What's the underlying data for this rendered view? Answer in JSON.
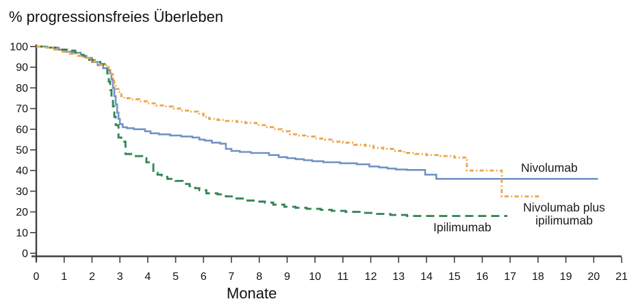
{
  "chart_data": {
    "type": "line",
    "subtype": "kaplan-meier-step",
    "title": "% progressionsfreies Überleben",
    "xlabel": "Monate",
    "ylabel": "% progressionsfreies Überleben",
    "xlim": [
      0,
      21
    ],
    "ylim": [
      0,
      100
    ],
    "x_ticks": [
      0,
      1,
      2,
      3,
      4,
      5,
      6,
      7,
      8,
      9,
      10,
      11,
      12,
      13,
      14,
      15,
      16,
      17,
      18,
      19,
      20,
      21
    ],
    "y_ticks": [
      0,
      10,
      20,
      30,
      40,
      50,
      60,
      70,
      80,
      90,
      100
    ],
    "grid": false,
    "legend_position": "inline-annotations",
    "axis_color": "#3f3f3f",
    "text_color": "#111111",
    "series": [
      {
        "name": "Nivolumab",
        "color": "#7291c7",
        "line_style": "solid",
        "points": [
          [
            0,
            100
          ],
          [
            0.4,
            99.5
          ],
          [
            0.8,
            98.5
          ],
          [
            1.0,
            97.5
          ],
          [
            1.3,
            97
          ],
          [
            1.6,
            95.5
          ],
          [
            1.8,
            94.5
          ],
          [
            2.0,
            92.5
          ],
          [
            2.2,
            91
          ],
          [
            2.4,
            89.5
          ],
          [
            2.55,
            88.5
          ],
          [
            2.65,
            87
          ],
          [
            2.7,
            84
          ],
          [
            2.75,
            80
          ],
          [
            2.8,
            76
          ],
          [
            2.85,
            72
          ],
          [
            2.9,
            68
          ],
          [
            2.95,
            65
          ],
          [
            3.0,
            62.5
          ],
          [
            3.1,
            61
          ],
          [
            3.25,
            60.5
          ],
          [
            3.5,
            60
          ],
          [
            3.9,
            59
          ],
          [
            4.1,
            58
          ],
          [
            4.4,
            57.5
          ],
          [
            4.8,
            57
          ],
          [
            5.2,
            56.5
          ],
          [
            5.6,
            56
          ],
          [
            5.85,
            55
          ],
          [
            6.05,
            54.5
          ],
          [
            6.3,
            53.5
          ],
          [
            6.6,
            53
          ],
          [
            6.8,
            50.5
          ],
          [
            7.0,
            49.5
          ],
          [
            7.3,
            49
          ],
          [
            7.7,
            48.5
          ],
          [
            8.1,
            48.5
          ],
          [
            8.35,
            47.5
          ],
          [
            8.7,
            46.5
          ],
          [
            9.0,
            46
          ],
          [
            9.3,
            45.5
          ],
          [
            9.6,
            45
          ],
          [
            9.9,
            44.5
          ],
          [
            10.3,
            44
          ],
          [
            10.9,
            43.5
          ],
          [
            11.5,
            43
          ],
          [
            11.95,
            42
          ],
          [
            12.3,
            41.5
          ],
          [
            12.6,
            41
          ],
          [
            12.9,
            40.5
          ],
          [
            13.3,
            40.3
          ],
          [
            13.95,
            38
          ],
          [
            14.35,
            36
          ],
          [
            20.15,
            36
          ]
        ]
      },
      {
        "name": "Ipilimumab",
        "color": "#338657",
        "line_style": "long-dash",
        "points": [
          [
            0,
            100
          ],
          [
            0.4,
            99.5
          ],
          [
            0.8,
            98.5
          ],
          [
            1.1,
            98
          ],
          [
            1.4,
            97
          ],
          [
            1.55,
            96
          ],
          [
            1.7,
            95
          ],
          [
            1.9,
            93.5
          ],
          [
            2.1,
            92.5
          ],
          [
            2.3,
            91.5
          ],
          [
            2.45,
            90
          ],
          [
            2.55,
            87
          ],
          [
            2.6,
            83
          ],
          [
            2.65,
            79
          ],
          [
            2.7,
            75
          ],
          [
            2.75,
            71
          ],
          [
            2.8,
            66
          ],
          [
            2.85,
            62
          ],
          [
            2.95,
            56
          ],
          [
            3.05,
            54
          ],
          [
            3.2,
            48
          ],
          [
            3.5,
            47
          ],
          [
            3.8,
            46
          ],
          [
            3.95,
            44
          ],
          [
            4.1,
            43
          ],
          [
            4.2,
            39
          ],
          [
            4.35,
            38
          ],
          [
            4.5,
            37
          ],
          [
            4.7,
            36
          ],
          [
            5.0,
            35
          ],
          [
            5.25,
            33.5
          ],
          [
            5.5,
            32.5
          ],
          [
            5.7,
            31.5
          ],
          [
            5.85,
            30.5
          ],
          [
            6.1,
            29
          ],
          [
            6.5,
            28.5
          ],
          [
            6.8,
            27.5
          ],
          [
            7.1,
            26.5
          ],
          [
            7.5,
            25.5
          ],
          [
            7.9,
            25
          ],
          [
            8.2,
            24.5
          ],
          [
            8.5,
            23.5
          ],
          [
            8.9,
            22.5
          ],
          [
            9.3,
            22
          ],
          [
            9.7,
            21.5
          ],
          [
            10.2,
            21
          ],
          [
            10.6,
            20.5
          ],
          [
            11.1,
            20
          ],
          [
            11.6,
            19.5
          ],
          [
            12.1,
            19
          ],
          [
            12.7,
            18.5
          ],
          [
            13.3,
            18
          ],
          [
            16.9,
            18
          ]
        ]
      },
      {
        "name": "Nivolumab plus ipilimumab",
        "color": "#eda64b",
        "line_style": "dash-dot",
        "points": [
          [
            0,
            100
          ],
          [
            0.3,
            99.5
          ],
          [
            0.6,
            98.5
          ],
          [
            0.9,
            97.5
          ],
          [
            1.2,
            96.5
          ],
          [
            1.5,
            95.5
          ],
          [
            1.7,
            94.5
          ],
          [
            1.9,
            93.5
          ],
          [
            2.1,
            92
          ],
          [
            2.3,
            91
          ],
          [
            2.5,
            90
          ],
          [
            2.6,
            88.5
          ],
          [
            2.7,
            86.5
          ],
          [
            2.75,
            84
          ],
          [
            2.8,
            81.5
          ],
          [
            2.85,
            79.5
          ],
          [
            2.95,
            78
          ],
          [
            3.05,
            76
          ],
          [
            3.15,
            75
          ],
          [
            3.4,
            74.5
          ],
          [
            3.7,
            73.5
          ],
          [
            4.0,
            72.5
          ],
          [
            4.3,
            71.5
          ],
          [
            4.6,
            71
          ],
          [
            4.9,
            70
          ],
          [
            5.2,
            69
          ],
          [
            5.5,
            68.5
          ],
          [
            5.8,
            67.5
          ],
          [
            6.0,
            66
          ],
          [
            6.2,
            65
          ],
          [
            6.5,
            64.5
          ],
          [
            6.8,
            64
          ],
          [
            7.2,
            63.5
          ],
          [
            7.5,
            63
          ],
          [
            7.9,
            62
          ],
          [
            8.2,
            61
          ],
          [
            8.5,
            60
          ],
          [
            8.8,
            59
          ],
          [
            9.1,
            57.5
          ],
          [
            9.4,
            57
          ],
          [
            9.7,
            56.5
          ],
          [
            10.0,
            55.5
          ],
          [
            10.35,
            55
          ],
          [
            10.65,
            54
          ],
          [
            11.0,
            53.5
          ],
          [
            11.4,
            52.5
          ],
          [
            11.8,
            52
          ],
          [
            12.1,
            51
          ],
          [
            12.45,
            50.5
          ],
          [
            12.8,
            49.5
          ],
          [
            13.2,
            48.5
          ],
          [
            13.6,
            48
          ],
          [
            14.0,
            47.5
          ],
          [
            14.5,
            47
          ],
          [
            15.0,
            46.3
          ],
          [
            15.45,
            40
          ],
          [
            16.7,
            27.5
          ],
          [
            18.1,
            27.5
          ]
        ]
      }
    ],
    "annotations": [
      {
        "id": "nivolumab-label",
        "text": "Nivolumab"
      },
      {
        "id": "nivolumab-plus-ipilimumab-label",
        "text": "Nivolumab plus\nipilimumab"
      },
      {
        "id": "ipilimumab-label",
        "text": "Ipilimumab"
      }
    ]
  }
}
